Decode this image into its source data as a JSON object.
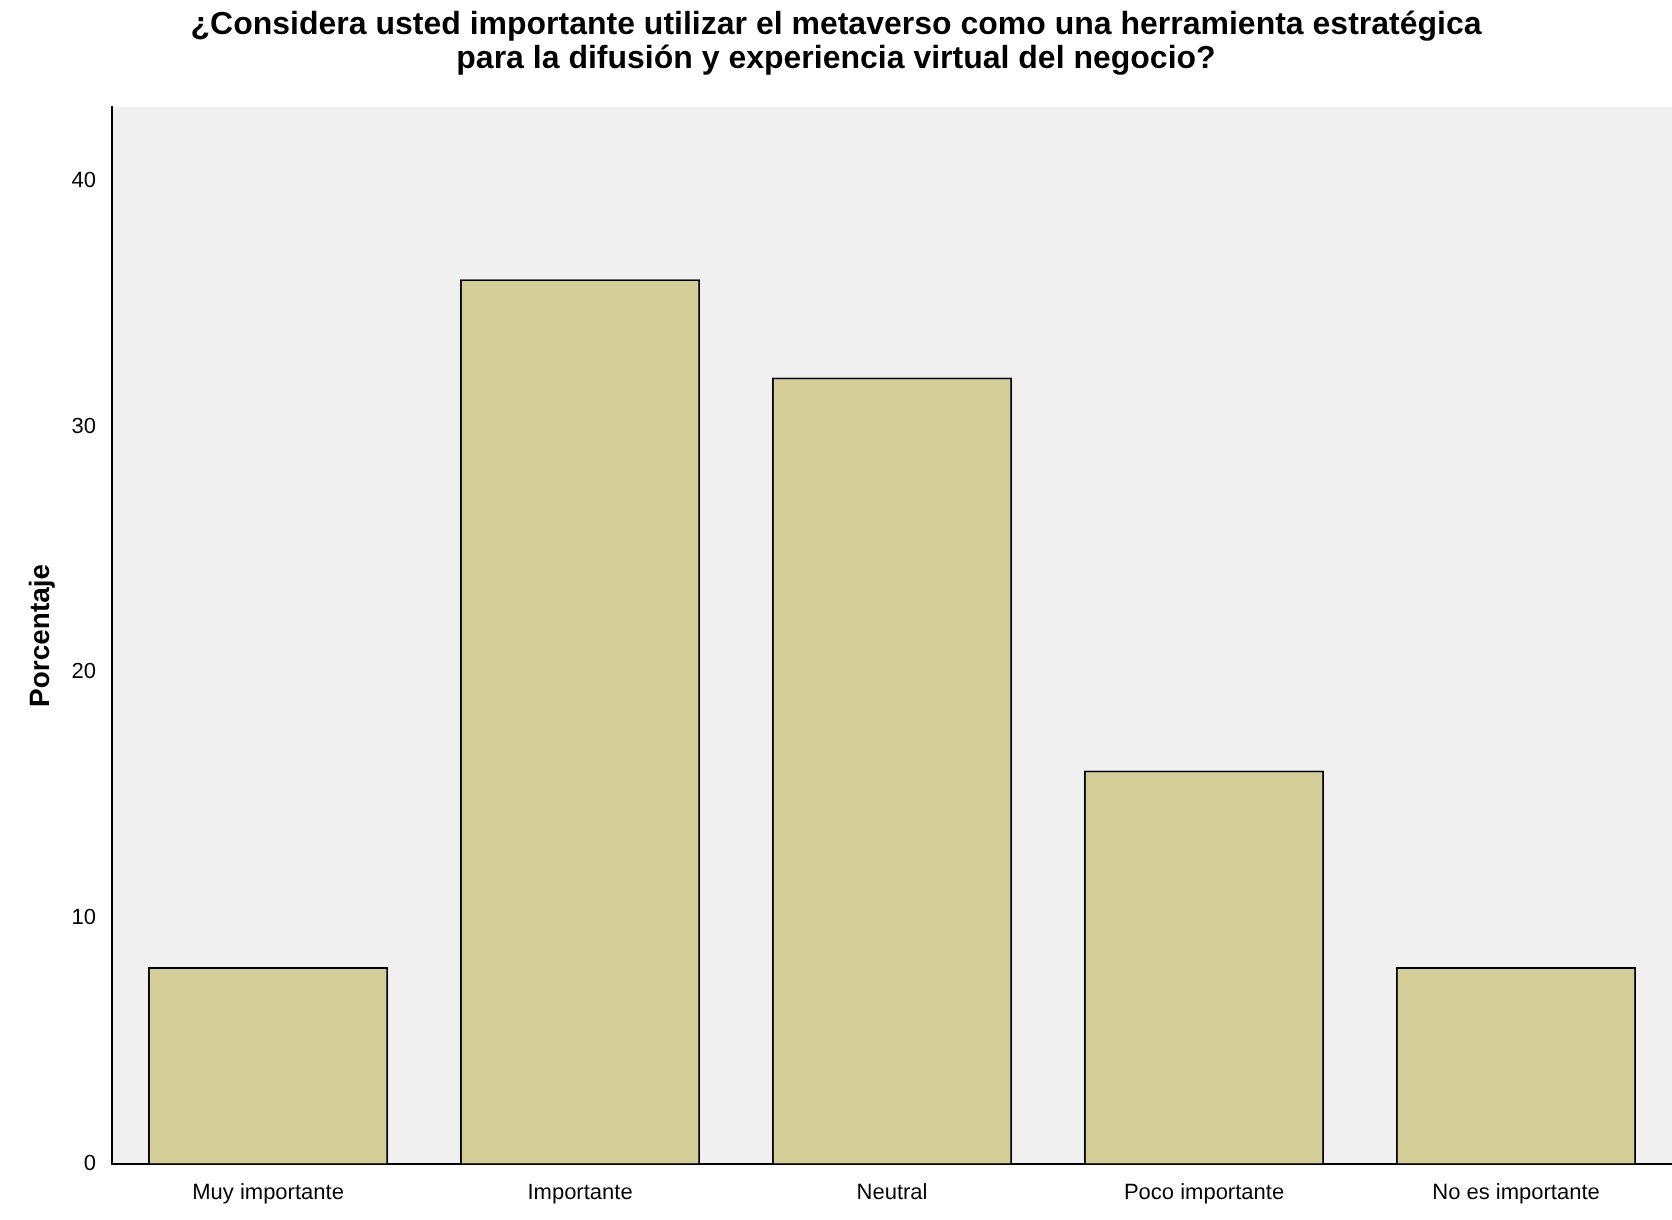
{
  "chart_data": {
    "type": "bar",
    "title": "¿Considera usted importante utilizar el metaverso como una herramienta estratégica para la difusión y experiencia virtual del negocio?",
    "ylabel": "Porcentaje",
    "categories": [
      "Muy importante",
      "Importante",
      "Neutral",
      "Poco importante",
      "No es importante"
    ],
    "values": [
      8,
      36,
      32,
      16,
      8
    ],
    "color": "#d3ce97",
    "ylim": [
      0,
      43
    ],
    "yticks": [
      0,
      10,
      20,
      30,
      40
    ],
    "grid": false,
    "legend": false
  }
}
